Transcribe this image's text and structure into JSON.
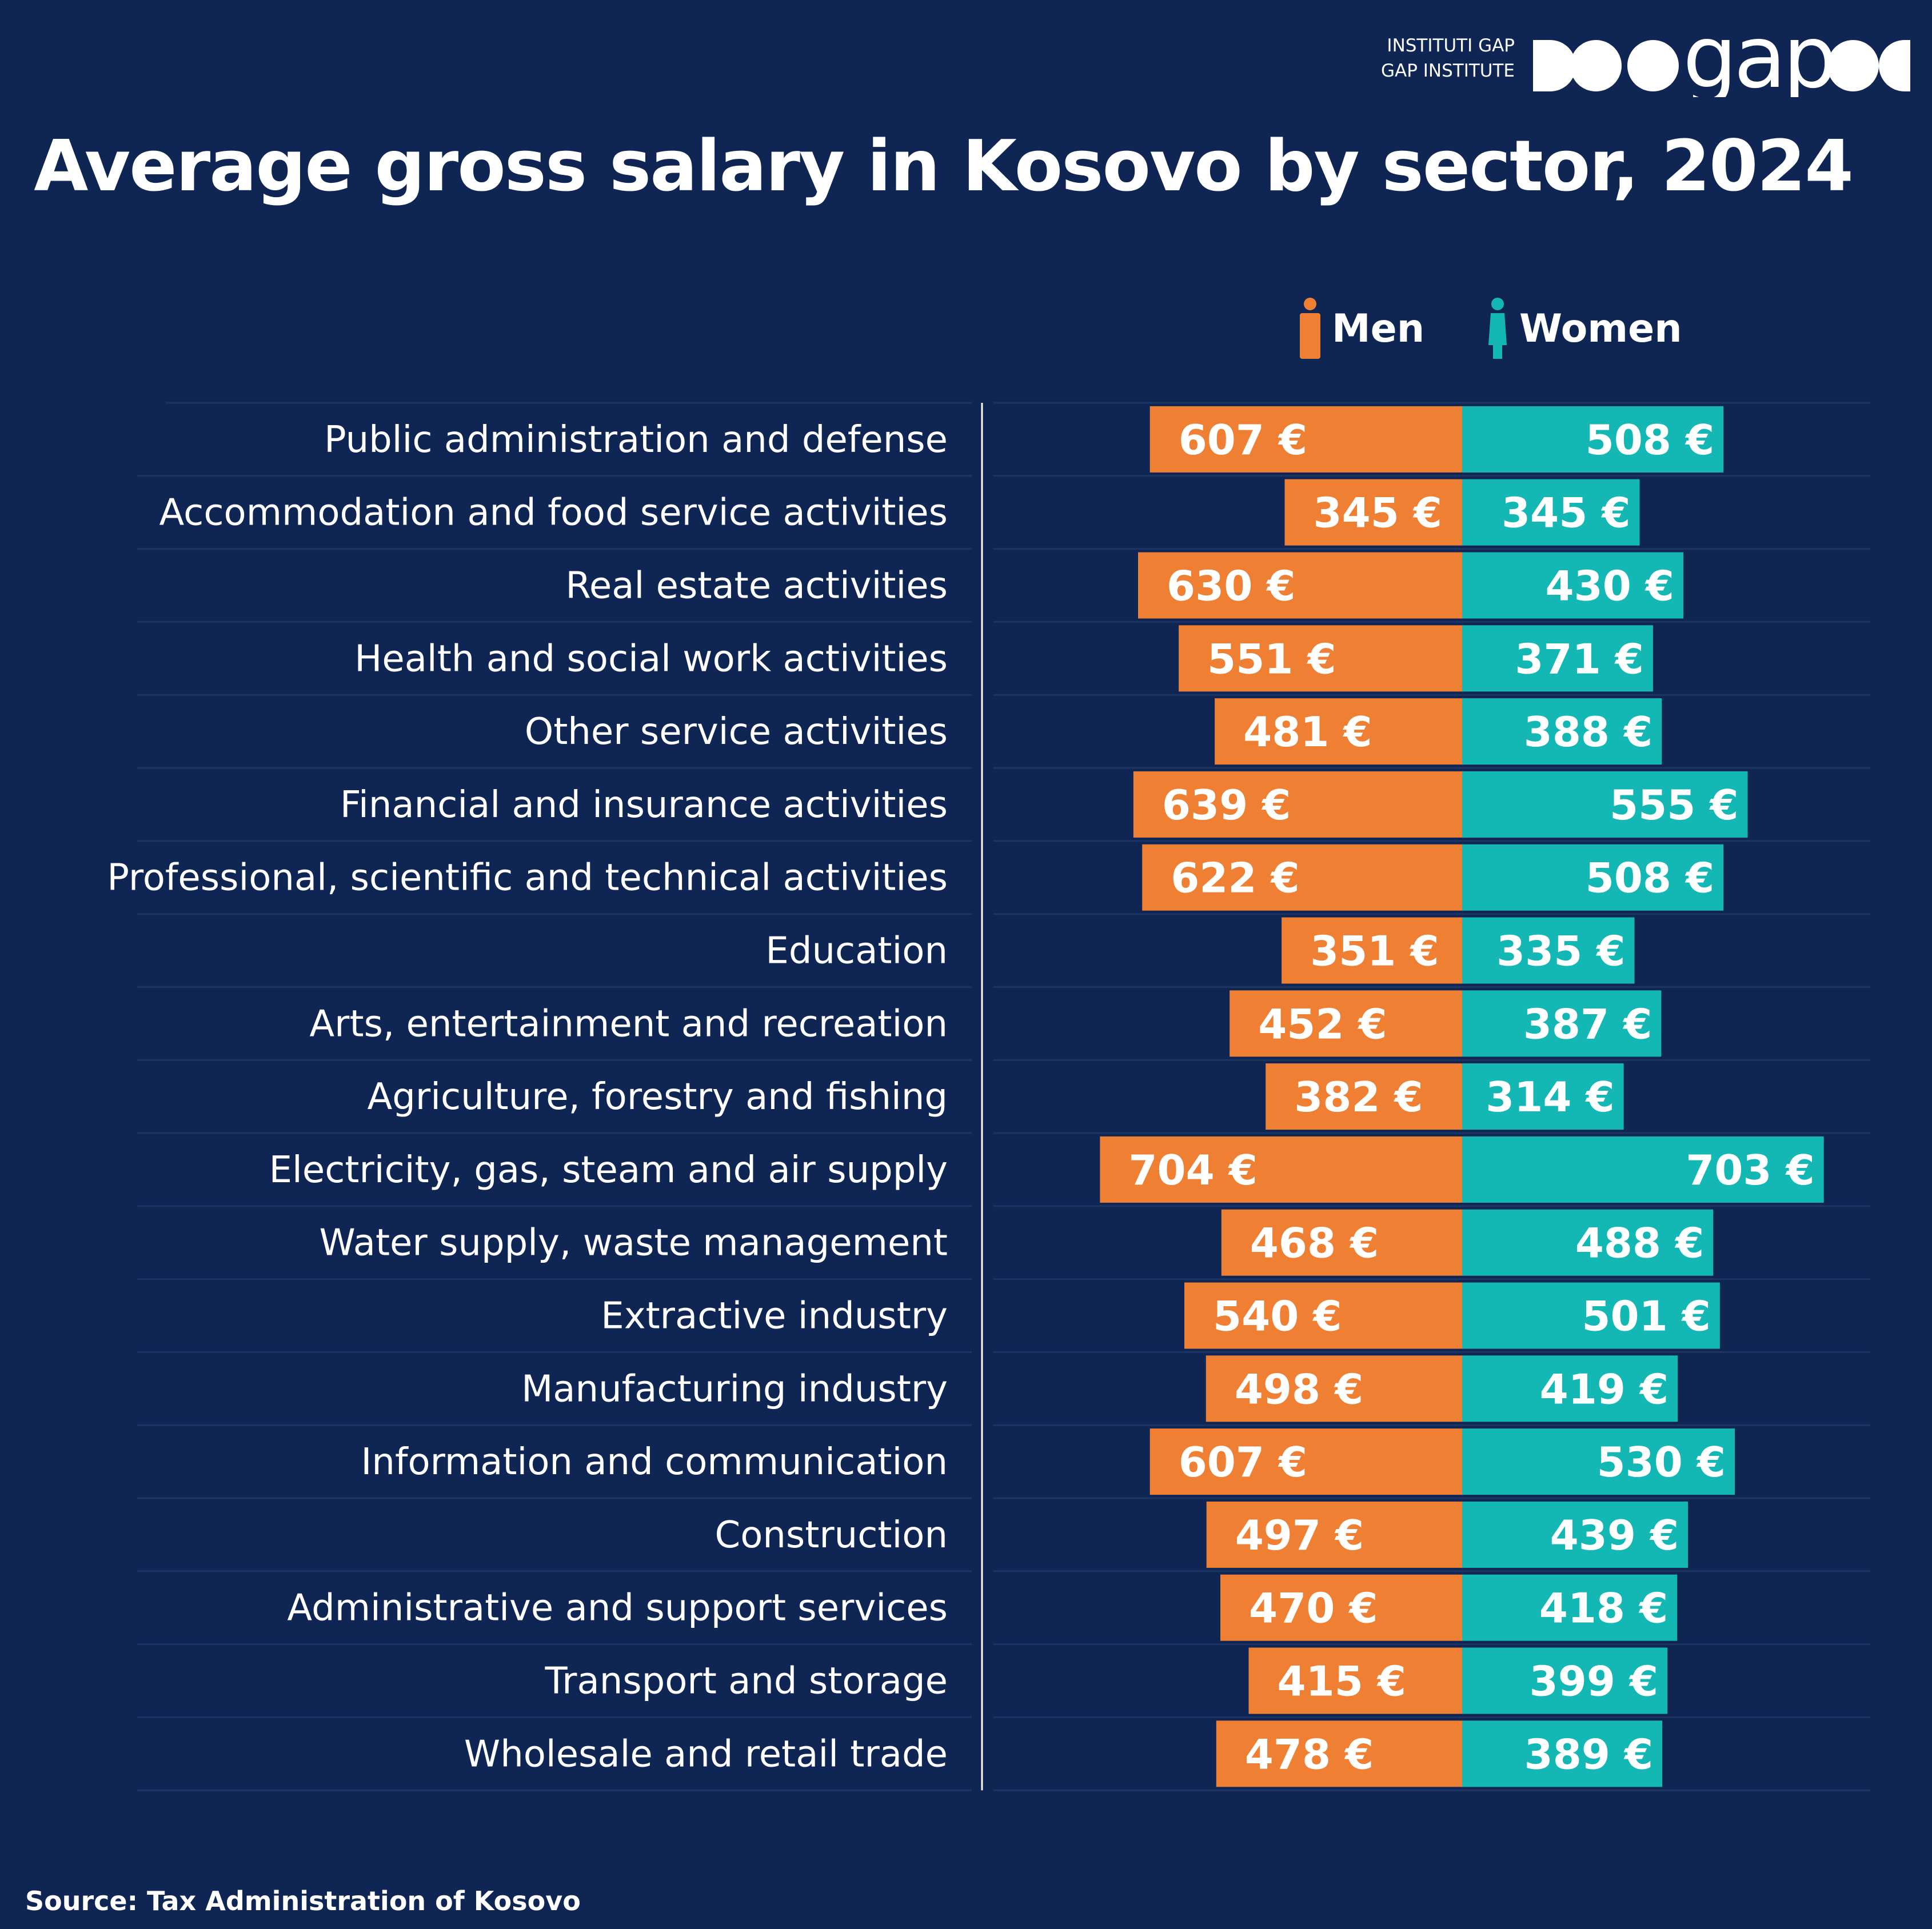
{
  "logo": {
    "line1": "INSTITUTI GAP",
    "line2": "GAP INSTITUTE",
    "wordmark": "gap"
  },
  "colors": {
    "background": "#0f2654",
    "men": "#ef8033",
    "women": "#13b8b5",
    "text": "#ffffff"
  },
  "legend": {
    "men": "Men",
    "women": "Women",
    "men_icon": "man-icon",
    "women_icon": "woman-icon"
  },
  "source": "Source: Tax Administration of Kosovo",
  "chart_data": {
    "type": "bar",
    "title": "Average gross salary in Kosovo by sector, 2024",
    "orientation": "horizontal-diverging",
    "value_suffix": " €",
    "categories": [
      "Public administration and defense",
      "Accommodation and food service activities",
      "Real estate activities",
      "Health and social work activities",
      "Other service activities",
      "Financial and insurance activities",
      "Professional, scientific and technical activities",
      "Education",
      "Arts, entertainment and recreation",
      "Agriculture, forestry and fishing",
      "Electricity, gas, steam and air supply",
      "Water supply, waste management",
      "Extractive industry",
      "Manufacturing industry",
      "Information and communication",
      "Construction",
      "Administrative and support services",
      "Transport and storage",
      "Wholesale and retail trade"
    ],
    "series": [
      {
        "name": "Men",
        "values": [
          607,
          345,
          630,
          551,
          481,
          639,
          622,
          351,
          452,
          382,
          704,
          468,
          540,
          498,
          607,
          497,
          470,
          415,
          478
        ]
      },
      {
        "name": "Women",
        "values": [
          508,
          345,
          430,
          371,
          388,
          555,
          508,
          335,
          387,
          314,
          703,
          488,
          501,
          419,
          530,
          439,
          418,
          399,
          389
        ]
      }
    ],
    "legend_position": "top-right"
  }
}
